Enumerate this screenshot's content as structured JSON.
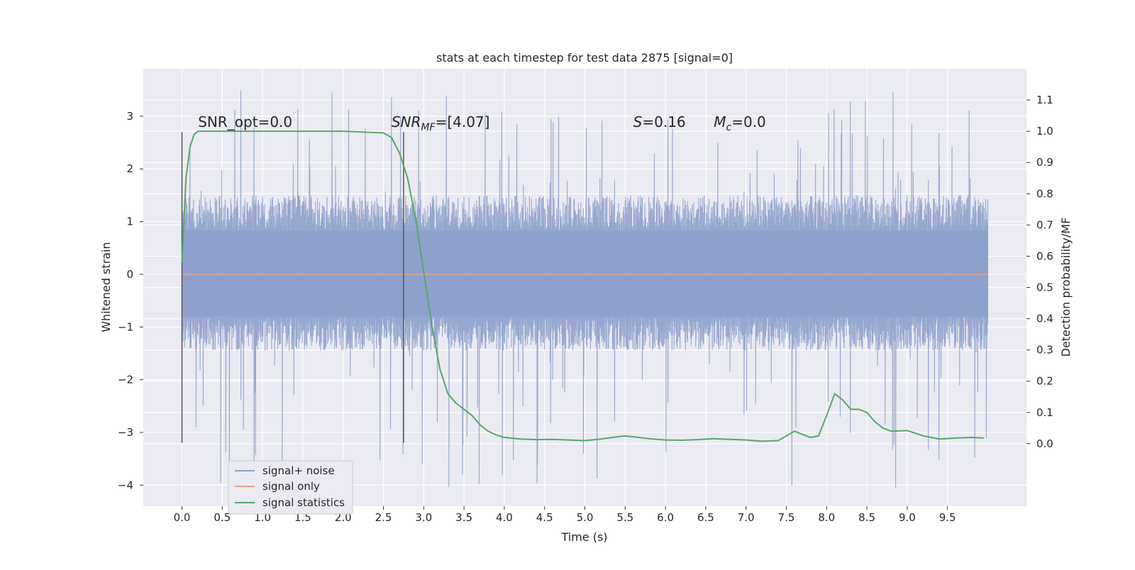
{
  "chart_data": {
    "type": "line",
    "title": "stats at each timestep for test data 2875 [signal=0]",
    "xlabel": "Time (s)",
    "ylabel_left": "Whitened strain",
    "ylabel_right": "Detection probability/MF",
    "xlim": [
      -0.48,
      10.48
    ],
    "ylim_left": [
      -4.4,
      3.9
    ],
    "ylim_right": [
      -0.2,
      1.2
    ],
    "x_ticks": [
      0.0,
      0.5,
      1.0,
      1.5,
      2.0,
      2.5,
      3.0,
      3.5,
      4.0,
      4.5,
      5.0,
      5.5,
      6.0,
      6.5,
      7.0,
      7.5,
      8.0,
      8.5,
      9.0,
      9.5
    ],
    "x_tick_labels": [
      "0.0",
      "0.5",
      "1.0",
      "1.5",
      "2.0",
      "2.5",
      "3.0",
      "3.5",
      "4.0",
      "4.5",
      "5.0",
      "5.5",
      "6.0",
      "6.5",
      "7.0",
      "7.5",
      "8.0",
      "8.5",
      "9.0",
      "9.5"
    ],
    "y_left_ticks": [
      3,
      2,
      1,
      0,
      -1,
      -2,
      -3,
      -4
    ],
    "y_left_tick_labels": [
      "3",
      "2",
      "1",
      "0",
      "−1",
      "−2",
      "−3",
      "−4"
    ],
    "y_right_ticks": [
      1.1,
      1.0,
      0.9,
      0.8,
      0.7,
      0.6,
      0.5,
      0.4,
      0.3,
      0.2,
      0.1,
      0.0
    ],
    "y_right_tick_labels": [
      "1.1",
      "1.0",
      "0.9",
      "0.8",
      "0.7",
      "0.6",
      "0.5",
      "0.4",
      "0.3",
      "0.2",
      "0.1",
      "0.0"
    ],
    "grid": true,
    "legend_placement": "lower-left",
    "series": [
      {
        "name": "signal+ noise",
        "axis": "left",
        "color": "#8da0cb",
        "style": "dense noise trace",
        "x_range": [
          0.0,
          10.0
        ],
        "envelope_max": 3.5,
        "envelope_min": -4.05,
        "band_max": 1.5,
        "band_min": -1.45
      },
      {
        "name": "signal only",
        "axis": "left",
        "color": "#e5a68a",
        "x": [
          0.0,
          10.0
        ],
        "values": [
          0.0,
          0.0
        ]
      },
      {
        "name": "signal statistics",
        "axis": "right",
        "color": "#55a868",
        "x": [
          0.0,
          0.05,
          0.1,
          0.15,
          0.2,
          0.3,
          0.5,
          1.0,
          1.5,
          2.0,
          2.5,
          2.6,
          2.7,
          2.8,
          2.9,
          3.0,
          3.1,
          3.2,
          3.3,
          3.4,
          3.5,
          3.6,
          3.7,
          3.8,
          3.9,
          4.0,
          4.2,
          4.4,
          4.6,
          4.8,
          5.0,
          5.2,
          5.4,
          5.5,
          5.6,
          5.8,
          6.0,
          6.2,
          6.4,
          6.6,
          6.8,
          7.0,
          7.2,
          7.4,
          7.5,
          7.6,
          7.7,
          7.8,
          7.9,
          8.0,
          8.1,
          8.2,
          8.3,
          8.4,
          8.5,
          8.6,
          8.7,
          8.8,
          9.0,
          9.2,
          9.4,
          9.6,
          9.8,
          9.95
        ],
        "values": [
          0.58,
          0.85,
          0.95,
          0.99,
          1.0,
          1.0,
          1.0,
          1.0,
          1.0,
          1.0,
          0.995,
          0.98,
          0.93,
          0.85,
          0.72,
          0.55,
          0.38,
          0.24,
          0.16,
          0.13,
          0.11,
          0.09,
          0.06,
          0.04,
          0.028,
          0.02,
          0.015,
          0.013,
          0.014,
          0.012,
          0.01,
          0.015,
          0.022,
          0.025,
          0.022,
          0.016,
          0.012,
          0.011,
          0.013,
          0.016,
          0.014,
          0.012,
          0.008,
          0.01,
          0.025,
          0.04,
          0.03,
          0.02,
          0.025,
          0.09,
          0.16,
          0.14,
          0.11,
          0.11,
          0.1,
          0.07,
          0.05,
          0.04,
          0.042,
          0.025,
          0.015,
          0.018,
          0.02,
          0.018
        ]
      }
    ],
    "annotations": [
      {
        "name": "snr-opt",
        "parts": [
          {
            "t": "SNR_opt=0.0"
          }
        ],
        "x": 0.2,
        "y": 2.8
      },
      {
        "name": "snr-mf",
        "parts": [
          {
            "t": "SNR",
            "i": true
          },
          {
            "t": "MF",
            "i": true,
            "sub": true
          },
          {
            "t": "=[4.07]"
          }
        ],
        "x": 2.6,
        "y": 2.8
      },
      {
        "name": "s-value",
        "parts": [
          {
            "t": "S",
            "i": true
          },
          {
            "t": "=0.16"
          }
        ],
        "x": 5.6,
        "y": 2.8
      },
      {
        "name": "mc-value",
        "parts": [
          {
            "t": "M",
            "i": true
          },
          {
            "t": "c",
            "i": true,
            "sub": true
          },
          {
            "t": "=0.0"
          }
        ],
        "x": 6.6,
        "y": 2.8
      }
    ],
    "vertical_markers": [
      {
        "x": 0.0,
        "y_min": -3.2,
        "y_max": 2.7
      },
      {
        "x": 2.75,
        "y_min": -3.2,
        "y_max": 2.7
      }
    ]
  }
}
